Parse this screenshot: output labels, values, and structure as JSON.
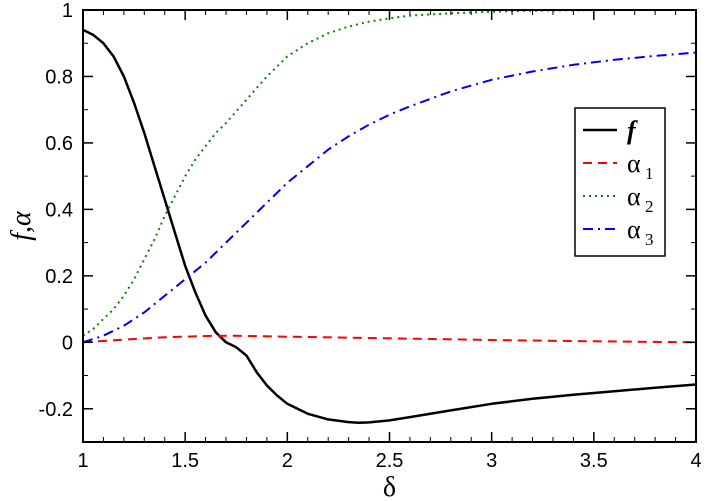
{
  "chart_data": {
    "type": "line",
    "xlabel": "δ",
    "ylabel": "f,α",
    "xlim": [
      1,
      4
    ],
    "ylim": [
      -0.3,
      1
    ],
    "x_ticks": [
      1,
      1.5,
      2,
      2.5,
      3,
      3.5,
      4
    ],
    "x_tick_labels": [
      "1",
      "1.5",
      "2",
      "2.5",
      "3",
      "3.5",
      "4"
    ],
    "y_ticks": [
      -0.2,
      0,
      0.2,
      0.4,
      0.6,
      0.8,
      1
    ],
    "y_tick_labels": [
      "-0.2",
      "0",
      "0.2",
      "0.4",
      "0.6",
      "0.8",
      "1"
    ],
    "grid": false,
    "legend_position": "right",
    "series": [
      {
        "name": "f",
        "legend_label": "f",
        "legend_sub": "",
        "color": "#000000",
        "style": "solid",
        "x": [
          1.0,
          1.05,
          1.1,
          1.15,
          1.2,
          1.25,
          1.3,
          1.35,
          1.4,
          1.45,
          1.5,
          1.55,
          1.6,
          1.65,
          1.7,
          1.75,
          1.8,
          1.85,
          1.9,
          1.95,
          2.0,
          2.1,
          2.2,
          2.3,
          2.35,
          2.4,
          2.5,
          2.6,
          2.8,
          3.0,
          3.2,
          3.4,
          3.6,
          3.8,
          4.0
        ],
        "y": [
          0.94,
          0.925,
          0.9,
          0.86,
          0.8,
          0.72,
          0.63,
          0.53,
          0.43,
          0.33,
          0.23,
          0.15,
          0.08,
          0.03,
          0.0,
          -0.015,
          -0.04,
          -0.09,
          -0.13,
          -0.16,
          -0.185,
          -0.215,
          -0.232,
          -0.24,
          -0.242,
          -0.241,
          -0.235,
          -0.225,
          -0.205,
          -0.185,
          -0.17,
          -0.158,
          -0.147,
          -0.137,
          -0.127
        ]
      },
      {
        "name": "α1",
        "legend_label": "α",
        "legend_sub": "1",
        "color": "#ff0000",
        "style": "dashed",
        "x": [
          1.0,
          1.2,
          1.4,
          1.6,
          1.7,
          1.8,
          2.0,
          2.5,
          3.0,
          3.5,
          4.0
        ],
        "y": [
          0.0,
          0.008,
          0.015,
          0.019,
          0.02,
          0.019,
          0.017,
          0.012,
          0.007,
          0.003,
          0.0
        ]
      },
      {
        "name": "α2",
        "legend_label": "α",
        "legend_sub": "2",
        "color": "#008800",
        "style": "dotted",
        "x": [
          1.0,
          1.05,
          1.1,
          1.15,
          1.2,
          1.25,
          1.3,
          1.35,
          1.4,
          1.45,
          1.5,
          1.55,
          1.6,
          1.65,
          1.7,
          1.8,
          1.9,
          2.0,
          2.1,
          2.2,
          2.3,
          2.4,
          2.5,
          2.6,
          2.8,
          3.0,
          3.2,
          3.4,
          3.6,
          3.8,
          4.0
        ],
        "y": [
          0.02,
          0.04,
          0.07,
          0.1,
          0.14,
          0.19,
          0.25,
          0.31,
          0.38,
          0.44,
          0.5,
          0.55,
          0.59,
          0.63,
          0.66,
          0.73,
          0.8,
          0.86,
          0.9,
          0.93,
          0.95,
          0.965,
          0.975,
          0.983,
          0.99,
          0.995,
          0.998,
          0.999,
          1.0,
          1.0,
          1.0
        ]
      },
      {
        "name": "α3",
        "legend_label": "α",
        "legend_sub": "3",
        "color": "#0000ee",
        "style": "dashdot",
        "x": [
          1.0,
          1.1,
          1.2,
          1.3,
          1.4,
          1.5,
          1.6,
          1.7,
          1.8,
          1.9,
          2.0,
          2.1,
          2.2,
          2.3,
          2.4,
          2.5,
          2.6,
          2.8,
          3.0,
          3.2,
          3.4,
          3.6,
          3.8,
          4.0
        ],
        "y": [
          0.0,
          0.02,
          0.05,
          0.09,
          0.14,
          0.19,
          0.24,
          0.3,
          0.36,
          0.42,
          0.48,
          0.53,
          0.58,
          0.62,
          0.655,
          0.685,
          0.71,
          0.755,
          0.79,
          0.815,
          0.835,
          0.85,
          0.862,
          0.872
        ]
      }
    ]
  }
}
